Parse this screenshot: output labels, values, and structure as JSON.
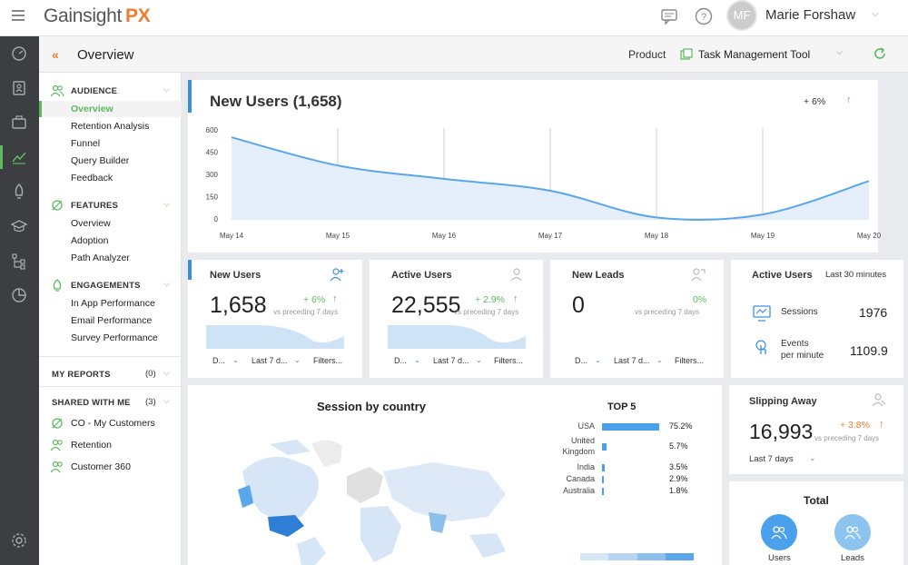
{
  "header": {
    "logo_text": "Gainsight",
    "logo_suffix": "PX",
    "avatar_initials": "MF",
    "user_name": "Marie Forshaw"
  },
  "subheader": {
    "title": "Overview",
    "product_label": "Product",
    "product_value": "Task Management Tool"
  },
  "nav": {
    "audience": {
      "title": "AUDIENCE",
      "items": [
        "Overview",
        "Retention Analysis",
        "Funnel",
        "Query Builder",
        "Feedback"
      ]
    },
    "features": {
      "title": "FEATURES",
      "items": [
        "Overview",
        "Adoption",
        "Path Analyzer"
      ]
    },
    "engagements": {
      "title": "ENGAGEMENTS",
      "items": [
        "In App Performance",
        "Email Performance",
        "Survey Performance"
      ]
    },
    "my_reports": {
      "title": "MY REPORTS",
      "count": "(0)"
    },
    "shared": {
      "title": "SHARED WITH ME",
      "count": "(3)",
      "items": [
        "CO - My Customers",
        "Retention",
        "Customer 360"
      ]
    }
  },
  "new_users_chart": {
    "title": "New Users (1,658)",
    "change": "+ 6%",
    "y_ticks": [
      "600",
      "450",
      "300",
      "150",
      "0"
    ],
    "x_ticks": [
      "May 14",
      "May 15",
      "May 16",
      "May 17",
      "May 18",
      "May 19",
      "May 20"
    ]
  },
  "chart_data": {
    "type": "area",
    "title": "New Users (1,658)",
    "x": [
      "May 14",
      "May 15",
      "May 16",
      "May 17",
      "May 18",
      "May 19",
      "May 20"
    ],
    "series": [
      {
        "values": [
          550,
          360,
          270,
          190,
          10,
          30,
          255
        ]
      }
    ],
    "ylim": [
      0,
      600
    ],
    "color": "#5aa6ea",
    "fill": "#e4effb"
  },
  "metrics": [
    {
      "title": "New Users",
      "value": "1,658",
      "change": "+ 6%",
      "sub": "vs preceding 7 days",
      "f1": "D...",
      "f2": "Last 7 d...",
      "f3": "Filters..."
    },
    {
      "title": "Active Users",
      "value": "22,555",
      "change": "+ 2.9%",
      "sub": "vs preceding 7 days",
      "f1": "D...",
      "f2": "Last 7 d...",
      "f3": "Filters..."
    },
    {
      "title": "New Leads",
      "value": "0",
      "change": "0%",
      "sub": "vs preceding 7 days",
      "f1": "D...",
      "f2": "Last 7 d...",
      "f3": "Filters..."
    }
  ],
  "active_users": {
    "title": "Active Users",
    "period": "Last 30 minutes",
    "sessions_label": "Sessions",
    "sessions_value": "1976",
    "events_label_1": "Events",
    "events_label_2": "per minute",
    "events_value": "1109.9"
  },
  "session_by_country": {
    "title": "Session by country",
    "top5_title": "TOP 5",
    "rows": [
      {
        "country": "USA",
        "pct": "75.2%",
        "value": 75.2
      },
      {
        "country": "United Kingdom",
        "country_1": "United",
        "country_2": "Kingdom",
        "pct": "5.7%",
        "value": 5.7
      },
      {
        "country": "India",
        "pct": "3.5%",
        "value": 3.5
      },
      {
        "country": "Canada",
        "pct": "2.9%",
        "value": 2.9
      },
      {
        "country": "Australia",
        "pct": "1.8%",
        "value": 1.8
      }
    ]
  },
  "slipping_away": {
    "title": "Slipping Away",
    "value": "16,993",
    "change": "+ 3.8%",
    "sub": "vs preceding 7 days",
    "period": "Last 7 days"
  },
  "total": {
    "title": "Total",
    "users_label": "Users",
    "leads_label": "Leads"
  },
  "colors": {
    "accent": "#5cb85c",
    "brand_orange": "#f07c2e",
    "blue": "#3b8fe0"
  }
}
